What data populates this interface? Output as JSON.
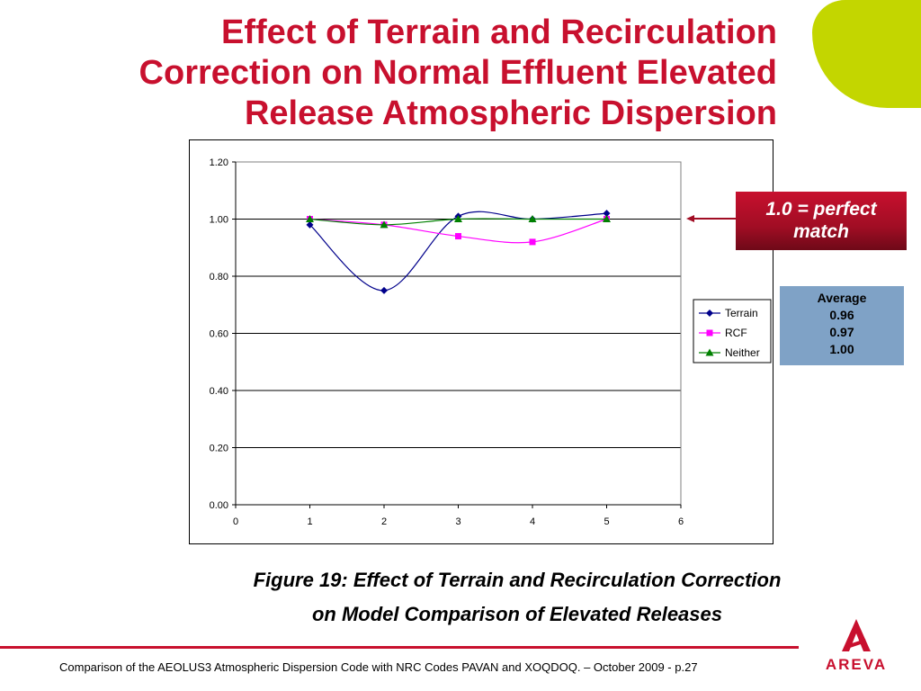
{
  "header": {
    "title_lines": [
      "Effect of Terrain and Recirculation",
      "Correction on Normal Effluent Elevated",
      "Release Atmospheric Dispersion"
    ]
  },
  "callout": {
    "text_line1": "1.0 = perfect",
    "text_line2": "match"
  },
  "average_box": {
    "heading": "Average",
    "values": [
      "0.96",
      "0.97",
      "1.00"
    ]
  },
  "caption": {
    "line1": "Figure 19:  Effect of Terrain and Recirculation Correction",
    "line2": "on Model Comparison of Elevated Releases"
  },
  "footer": {
    "text": "Comparison of the AEOLUS3 Atmospheric Dispersion Code with NRC Codes PAVAN and XOQDOQ. – October 2009 - p.27",
    "logo_text": "AREVA"
  },
  "colors": {
    "brand_red": "#c8102e",
    "leaf_green": "#c3d600",
    "avg_box_blue": "#7fa2c6"
  },
  "chart_data": {
    "type": "line",
    "title": "",
    "xlabel": "",
    "ylabel": "",
    "xlim": [
      0,
      6
    ],
    "ylim": [
      0.0,
      1.2
    ],
    "x_ticks": [
      "0",
      "1",
      "2",
      "3",
      "4",
      "5",
      "6"
    ],
    "y_ticks": [
      "0.00",
      "0.20",
      "0.40",
      "0.60",
      "0.80",
      "1.00",
      "1.20"
    ],
    "grid": "horizontal",
    "legend_position": "right",
    "series": [
      {
        "name": "Terrain",
        "color": "#00008b",
        "marker": "diamond",
        "x": [
          1,
          2,
          3,
          4,
          5
        ],
        "y": [
          0.98,
          0.75,
          1.01,
          1.0,
          1.02
        ]
      },
      {
        "name": "RCF",
        "color": "#ff00ff",
        "marker": "square",
        "x": [
          1,
          2,
          3,
          4,
          5
        ],
        "y": [
          1.0,
          0.98,
          0.94,
          0.92,
          1.0
        ]
      },
      {
        "name": "Neither",
        "color": "#008000",
        "marker": "triangle",
        "x": [
          1,
          2,
          3,
          4,
          5
        ],
        "y": [
          1.0,
          0.98,
          1.0,
          1.0,
          1.0
        ]
      }
    ]
  }
}
